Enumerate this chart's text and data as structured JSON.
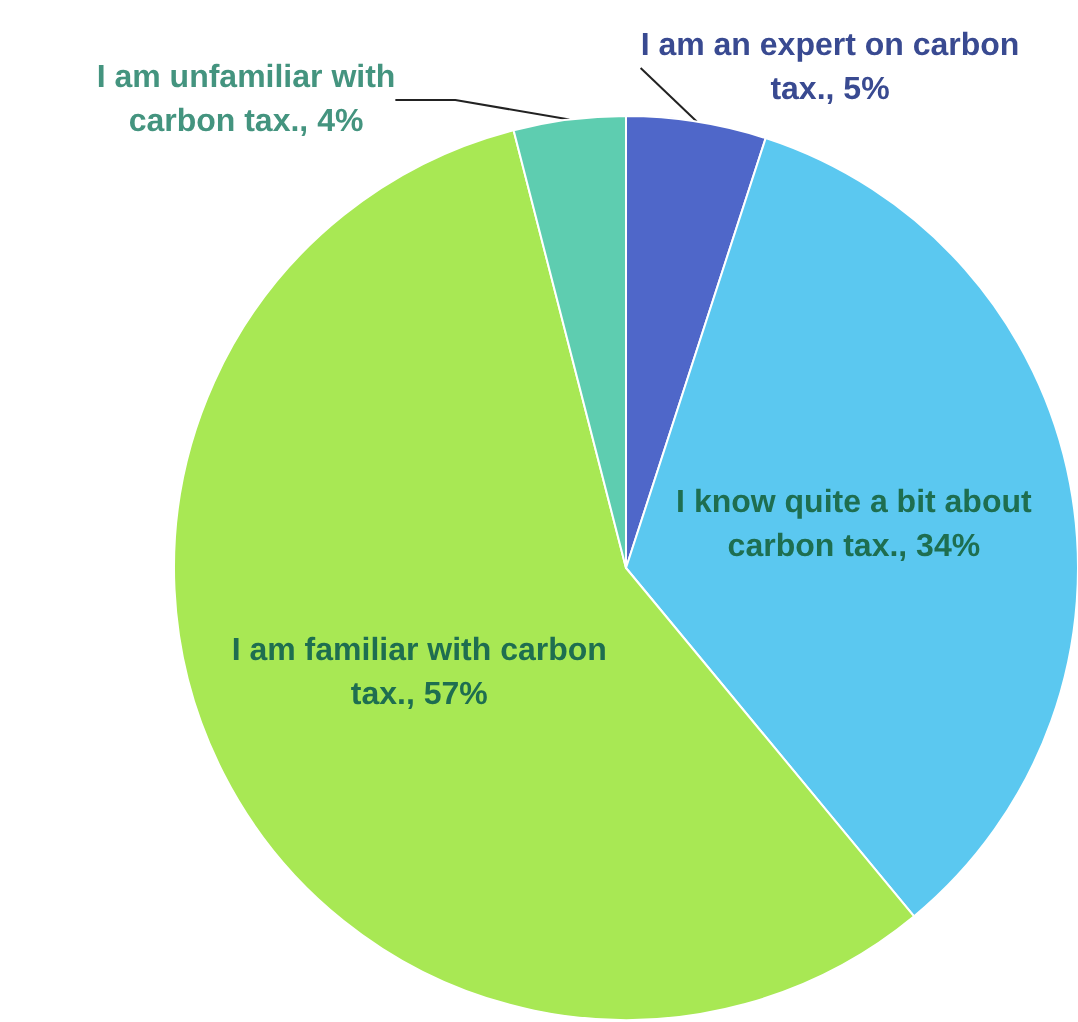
{
  "chart_data": {
    "type": "pie",
    "categories": [
      "I am an expert on carbon tax.",
      "I know quite a bit about carbon tax.",
      "I am familiar with carbon tax.",
      "I am unfamiliar with carbon tax."
    ],
    "values": [
      5,
      34,
      57,
      4
    ],
    "colors": [
      "#4f67c9",
      "#5bc8f0",
      "#a8e854",
      "#5ecdb0"
    ],
    "value_labels": [
      "5%",
      "34%",
      "57%",
      "4%"
    ],
    "legend": false
  }
}
